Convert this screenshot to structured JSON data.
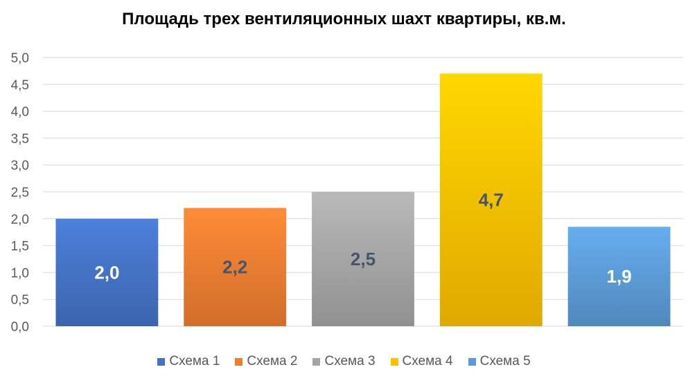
{
  "chart_data": {
    "type": "bar",
    "title": "Площадь трех вентиляционных шахт квартиры, кв.м.",
    "categories": [
      "Схема 1",
      "Схема 2",
      "Схема 3",
      "Схема 4",
      "Схема 5"
    ],
    "values": [
      2.0,
      2.2,
      2.5,
      4.7,
      1.85
    ],
    "data_labels": [
      "2,0",
      "2,2",
      "2,5",
      "4,7",
      "1,9"
    ],
    "colors": [
      "#4472c4",
      "#ed7d31",
      "#a5a5a5",
      "#ffc000",
      "#5b9bd5"
    ],
    "label_colors": [
      "#ffffff",
      "#44546a",
      "#44546a",
      "#44546a",
      "#ffffff"
    ],
    "ylim": [
      0,
      5
    ],
    "yticks": [
      "0,0",
      "0,5",
      "1,0",
      "1,5",
      "2,0",
      "2,5",
      "3,0",
      "3,5",
      "4,0",
      "4,5",
      "5,0"
    ],
    "grid": true,
    "legend_position": "bottom"
  }
}
